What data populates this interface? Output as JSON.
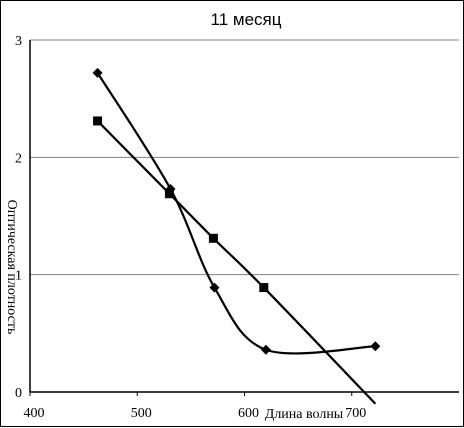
{
  "chart_data": {
    "type": "line",
    "title": "11 месяц",
    "xlabel": "Длина волны",
    "ylabel": "Оптическая плотность",
    "xlim": [
      400,
      800
    ],
    "ylim": [
      0,
      3
    ],
    "x_ticks": [
      "400",
      "500",
      "600",
      "700"
    ],
    "y_ticks": [
      "0",
      "1",
      "2",
      "3"
    ],
    "grid": "horizontal",
    "legend": "none",
    "series": [
      {
        "marker": "square",
        "points": [
          {
            "x": 463,
            "y": 2.31
          },
          {
            "x": 530,
            "y": 1.69
          },
          {
            "x": 571,
            "y": 1.31
          },
          {
            "x": 618,
            "y": 0.89
          },
          {
            "x": 722,
            "y": -0.1
          }
        ]
      },
      {
        "marker": "diamond",
        "points": [
          {
            "x": 463,
            "y": 2.72
          },
          {
            "x": 531,
            "y": 1.73
          },
          {
            "x": 572,
            "y": 0.89
          },
          {
            "x": 620,
            "y": 0.36
          },
          {
            "x": 722,
            "y": 0.39
          }
        ]
      }
    ],
    "colors": {
      "line": "#000000",
      "grid": "#808080",
      "background": "#ffffff"
    }
  }
}
